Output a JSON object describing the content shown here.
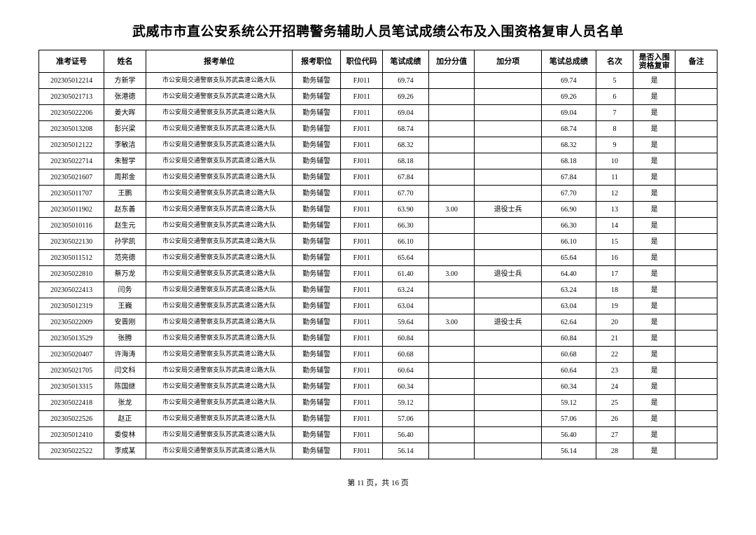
{
  "title": "武威市市直公安系统公开招聘警务辅助人员笔试成绩公布及入围资格复审人员名单",
  "headers": {
    "exam_no": "准考证号",
    "name": "姓名",
    "unit": "报考单位",
    "position": "报考职位",
    "code": "职位代码",
    "score": "笔试成绩",
    "bonus": "加分分值",
    "bonus_item": "加分项",
    "total": "笔试总成绩",
    "rank": "名次",
    "pass": "是否入围资格复审",
    "remark": "备注"
  },
  "rows": [
    {
      "exam_no": "202305012214",
      "name": "方新学",
      "unit": "市公安局交通警察支队苏武高速公路大队",
      "position": "勤务辅警",
      "code": "FJ011",
      "score": "69.74",
      "bonus": "",
      "bonus_item": "",
      "total": "69.74",
      "rank": "5",
      "pass": "是",
      "remark": ""
    },
    {
      "exam_no": "202305021713",
      "name": "张港德",
      "unit": "市公安局交通警察支队苏武高速公路大队",
      "position": "勤务辅警",
      "code": "FJ011",
      "score": "69.26",
      "bonus": "",
      "bonus_item": "",
      "total": "69.26",
      "rank": "6",
      "pass": "是",
      "remark": ""
    },
    {
      "exam_no": "202305022206",
      "name": "姜大晖",
      "unit": "市公安局交通警察支队苏武高速公路大队",
      "position": "勤务辅警",
      "code": "FJ011",
      "score": "69.04",
      "bonus": "",
      "bonus_item": "",
      "total": "69.04",
      "rank": "7",
      "pass": "是",
      "remark": ""
    },
    {
      "exam_no": "202305013208",
      "name": "彭兴梁",
      "unit": "市公安局交通警察支队苏武高速公路大队",
      "position": "勤务辅警",
      "code": "FJ011",
      "score": "68.74",
      "bonus": "",
      "bonus_item": "",
      "total": "68.74",
      "rank": "8",
      "pass": "是",
      "remark": ""
    },
    {
      "exam_no": "202305012122",
      "name": "李敏洁",
      "unit": "市公安局交通警察支队苏武高速公路大队",
      "position": "勤务辅警",
      "code": "FJ011",
      "score": "68.32",
      "bonus": "",
      "bonus_item": "",
      "total": "68.32",
      "rank": "9",
      "pass": "是",
      "remark": ""
    },
    {
      "exam_no": "202305022714",
      "name": "朱智学",
      "unit": "市公安局交通警察支队苏武高速公路大队",
      "position": "勤务辅警",
      "code": "FJ011",
      "score": "68.18",
      "bonus": "",
      "bonus_item": "",
      "total": "68.18",
      "rank": "10",
      "pass": "是",
      "remark": ""
    },
    {
      "exam_no": "202305021607",
      "name": "周邦金",
      "unit": "市公安局交通警察支队苏武高速公路大队",
      "position": "勤务辅警",
      "code": "FJ011",
      "score": "67.84",
      "bonus": "",
      "bonus_item": "",
      "total": "67.84",
      "rank": "11",
      "pass": "是",
      "remark": ""
    },
    {
      "exam_no": "202305011707",
      "name": "王鹏",
      "unit": "市公安局交通警察支队苏武高速公路大队",
      "position": "勤务辅警",
      "code": "FJ011",
      "score": "67.70",
      "bonus": "",
      "bonus_item": "",
      "total": "67.70",
      "rank": "12",
      "pass": "是",
      "remark": ""
    },
    {
      "exam_no": "202305011902",
      "name": "赵东善",
      "unit": "市公安局交通警察支队苏武高速公路大队",
      "position": "勤务辅警",
      "code": "FJ011",
      "score": "63.90",
      "bonus": "3.00",
      "bonus_item": "退役士兵",
      "total": "66.90",
      "rank": "13",
      "pass": "是",
      "remark": ""
    },
    {
      "exam_no": "202305010116",
      "name": "赵生元",
      "unit": "市公安局交通警察支队苏武高速公路大队",
      "position": "勤务辅警",
      "code": "FJ011",
      "score": "66.30",
      "bonus": "",
      "bonus_item": "",
      "total": "66.30",
      "rank": "14",
      "pass": "是",
      "remark": ""
    },
    {
      "exam_no": "202305022130",
      "name": "孙学凯",
      "unit": "市公安局交通警察支队苏武高速公路大队",
      "position": "勤务辅警",
      "code": "FJ011",
      "score": "66.10",
      "bonus": "",
      "bonus_item": "",
      "total": "66.10",
      "rank": "15",
      "pass": "是",
      "remark": ""
    },
    {
      "exam_no": "202305011512",
      "name": "范亮德",
      "unit": "市公安局交通警察支队苏武高速公路大队",
      "position": "勤务辅警",
      "code": "FJ011",
      "score": "65.64",
      "bonus": "",
      "bonus_item": "",
      "total": "65.64",
      "rank": "16",
      "pass": "是",
      "remark": ""
    },
    {
      "exam_no": "202305022810",
      "name": "蔡万龙",
      "unit": "市公安局交通警察支队苏武高速公路大队",
      "position": "勤务辅警",
      "code": "FJ011",
      "score": "61.40",
      "bonus": "3.00",
      "bonus_item": "退役士兵",
      "total": "64.40",
      "rank": "17",
      "pass": "是",
      "remark": ""
    },
    {
      "exam_no": "202305022413",
      "name": "闫务",
      "unit": "市公安局交通警察支队苏武高速公路大队",
      "position": "勤务辅警",
      "code": "FJ011",
      "score": "63.24",
      "bonus": "",
      "bonus_item": "",
      "total": "63.24",
      "rank": "18",
      "pass": "是",
      "remark": ""
    },
    {
      "exam_no": "202305012319",
      "name": "王巍",
      "unit": "市公安局交通警察支队苏武高速公路大队",
      "position": "勤务辅警",
      "code": "FJ011",
      "score": "63.04",
      "bonus": "",
      "bonus_item": "",
      "total": "63.04",
      "rank": "19",
      "pass": "是",
      "remark": ""
    },
    {
      "exam_no": "202305022009",
      "name": "安晋刚",
      "unit": "市公安局交通警察支队苏武高速公路大队",
      "position": "勤务辅警",
      "code": "FJ011",
      "score": "59.64",
      "bonus": "3.00",
      "bonus_item": "退役士兵",
      "total": "62.64",
      "rank": "20",
      "pass": "是",
      "remark": ""
    },
    {
      "exam_no": "202305013529",
      "name": "张腾",
      "unit": "市公安局交通警察支队苏武高速公路大队",
      "position": "勤务辅警",
      "code": "FJ011",
      "score": "60.84",
      "bonus": "",
      "bonus_item": "",
      "total": "60.84",
      "rank": "21",
      "pass": "是",
      "remark": ""
    },
    {
      "exam_no": "202305020407",
      "name": "许海涛",
      "unit": "市公安局交通警察支队苏武高速公路大队",
      "position": "勤务辅警",
      "code": "FJ011",
      "score": "60.68",
      "bonus": "",
      "bonus_item": "",
      "total": "60.68",
      "rank": "22",
      "pass": "是",
      "remark": ""
    },
    {
      "exam_no": "202305021705",
      "name": "闫文科",
      "unit": "市公安局交通警察支队苏武高速公路大队",
      "position": "勤务辅警",
      "code": "FJ011",
      "score": "60.64",
      "bonus": "",
      "bonus_item": "",
      "total": "60.64",
      "rank": "23",
      "pass": "是",
      "remark": ""
    },
    {
      "exam_no": "202305013315",
      "name": "陈国继",
      "unit": "市公安局交通警察支队苏武高速公路大队",
      "position": "勤务辅警",
      "code": "FJ011",
      "score": "60.34",
      "bonus": "",
      "bonus_item": "",
      "total": "60.34",
      "rank": "24",
      "pass": "是",
      "remark": ""
    },
    {
      "exam_no": "202305022418",
      "name": "张龙",
      "unit": "市公安局交通警察支队苏武高速公路大队",
      "position": "勤务辅警",
      "code": "FJ011",
      "score": "59.12",
      "bonus": "",
      "bonus_item": "",
      "total": "59.12",
      "rank": "25",
      "pass": "是",
      "remark": ""
    },
    {
      "exam_no": "202305022526",
      "name": "赵正",
      "unit": "市公安局交通警察支队苏武高速公路大队",
      "position": "勤务辅警",
      "code": "FJ011",
      "score": "57.06",
      "bonus": "",
      "bonus_item": "",
      "total": "57.06",
      "rank": "26",
      "pass": "是",
      "remark": ""
    },
    {
      "exam_no": "202305012410",
      "name": "委俊林",
      "unit": "市公安局交通警察支队苏武高速公路大队",
      "position": "勤务辅警",
      "code": "FJ011",
      "score": "56.40",
      "bonus": "",
      "bonus_item": "",
      "total": "56.40",
      "rank": "27",
      "pass": "是",
      "remark": ""
    },
    {
      "exam_no": "202305022522",
      "name": "李成某",
      "unit": "市公安局交通警察支队苏武高速公路大队",
      "position": "勤务辅警",
      "code": "FJ011",
      "score": "56.14",
      "bonus": "",
      "bonus_item": "",
      "total": "56.14",
      "rank": "28",
      "pass": "是",
      "remark": ""
    }
  ],
  "footer": "第 11 页，共 16 页"
}
